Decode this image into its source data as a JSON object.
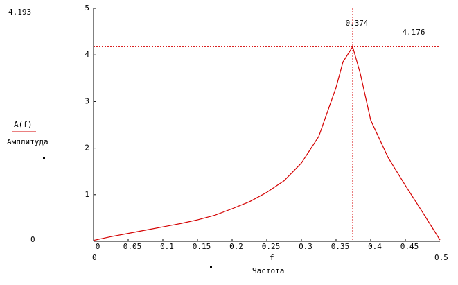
{
  "chart_data": {
    "type": "line",
    "y_label": "A(f)",
    "y_title": "Амплитуда",
    "x_label": "f",
    "x_title": "Частота",
    "range_labels": {
      "y_max": "4.193",
      "y_min": "0",
      "x_min": "0",
      "x_max": "0.5"
    },
    "x": [
      0,
      0.025,
      0.05,
      0.075,
      0.1,
      0.125,
      0.15,
      0.175,
      0.2,
      0.225,
      0.25,
      0.275,
      0.3,
      0.325,
      0.35,
      0.36,
      0.374,
      0.385,
      0.4,
      0.425,
      0.45,
      0.475,
      0.5
    ],
    "series": [
      {
        "name": "A(f)",
        "color": "#d40000",
        "values": [
          0.02,
          0.1,
          0.17,
          0.24,
          0.31,
          0.38,
          0.46,
          0.56,
          0.7,
          0.85,
          1.05,
          1.3,
          1.68,
          2.25,
          3.3,
          3.85,
          4.176,
          3.6,
          2.6,
          1.8,
          1.2,
          0.62,
          0.03
        ]
      }
    ],
    "xlim": [
      0,
      0.5
    ],
    "ylim": [
      0,
      5
    ],
    "xticks": [
      0,
      0.05,
      0.1,
      0.15,
      0.2,
      0.25,
      0.3,
      0.35,
      0.4,
      0.45
    ],
    "yticks": [
      1,
      2,
      3,
      4,
      5
    ],
    "markers": {
      "x": 0.374,
      "y": 4.176,
      "color": "#d40000"
    }
  }
}
